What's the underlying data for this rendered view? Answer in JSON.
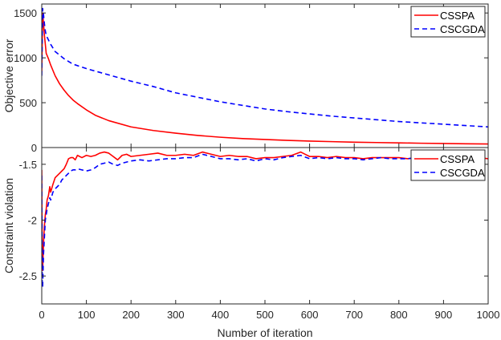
{
  "chart_data": [
    {
      "type": "line",
      "ylabel": "Objective error",
      "xlabel": "",
      "xlim": [
        0,
        1000
      ],
      "ylim": [
        0,
        1600
      ],
      "xticks": [
        0,
        100,
        200,
        300,
        400,
        500,
        600,
        700,
        800,
        900,
        1000
      ],
      "yticks": [
        0,
        500,
        1000,
        1500
      ],
      "ytick_labels": [
        "0",
        "500",
        "1000",
        "1500"
      ],
      "legend": {
        "placement": "top-right",
        "entries": [
          "CSSPA",
          "CSCGDA"
        ]
      },
      "series": [
        {
          "name": "CSSPA",
          "color": "#ff0000",
          "dash": "solid",
          "x": [
            0,
            2,
            4,
            6,
            8,
            10,
            15,
            20,
            30,
            40,
            50,
            60,
            70,
            80,
            100,
            120,
            150,
            200,
            250,
            300,
            350,
            400,
            450,
            500,
            550,
            600,
            650,
            700,
            750,
            800,
            850,
            900,
            950,
            1000
          ],
          "y": [
            850,
            1500,
            1380,
            1250,
            1150,
            1050,
            990,
            920,
            800,
            710,
            640,
            580,
            530,
            490,
            420,
            360,
            300,
            230,
            190,
            160,
            135,
            115,
            100,
            90,
            80,
            72,
            66,
            60,
            56,
            52,
            48,
            45,
            42,
            40
          ]
        },
        {
          "name": "CSCGDA",
          "color": "#0000ff",
          "dash": "dashed",
          "x": [
            0,
            2,
            4,
            6,
            8,
            10,
            15,
            20,
            30,
            50,
            70,
            100,
            150,
            200,
            250,
            300,
            350,
            400,
            450,
            500,
            550,
            600,
            650,
            700,
            750,
            800,
            850,
            900,
            950,
            1000
          ],
          "y": [
            800,
            1550,
            1480,
            1380,
            1300,
            1250,
            1200,
            1150,
            1070,
            990,
            930,
            880,
            810,
            740,
            680,
            610,
            560,
            510,
            470,
            430,
            400,
            375,
            350,
            330,
            310,
            290,
            275,
            260,
            245,
            230
          ]
        }
      ]
    },
    {
      "type": "line",
      "ylabel": "Constraint violation",
      "xlabel": "Number of iteration",
      "xlim": [
        0,
        1000
      ],
      "ylim": [
        -2.75,
        -1.35
      ],
      "xticks": [
        0,
        100,
        200,
        300,
        400,
        500,
        600,
        700,
        800,
        900,
        1000
      ],
      "xtick_labels": [
        "0",
        "100",
        "200",
        "300",
        "400",
        "500",
        "600",
        "700",
        "800",
        "900",
        "1000"
      ],
      "yticks": [
        -2.5,
        -2,
        -1.5
      ],
      "ytick_labels": [
        "-2.5",
        "-2",
        "-1.5"
      ],
      "legend": {
        "placement": "top-right",
        "entries": [
          "CSSPA",
          "CSCGDA"
        ]
      },
      "series": [
        {
          "name": "CSSPA",
          "color": "#ff0000",
          "dash": "solid",
          "x": [
            0,
            1,
            2,
            4,
            6,
            8,
            10,
            12,
            15,
            18,
            20,
            25,
            30,
            35,
            40,
            45,
            50,
            55,
            60,
            65,
            70,
            75,
            80,
            90,
            100,
            110,
            120,
            130,
            140,
            150,
            160,
            170,
            180,
            190,
            200,
            220,
            240,
            260,
            280,
            300,
            320,
            340,
            360,
            380,
            400,
            420,
            440,
            460,
            480,
            500,
            520,
            540,
            560,
            580,
            600,
            620,
            640,
            660,
            680,
            700,
            720,
            740,
            760,
            780,
            800,
            820,
            840,
            860,
            880,
            900,
            920,
            940,
            960,
            980,
            1000
          ],
          "y": [
            -1.55,
            -2.35,
            -2.45,
            -2.2,
            -2.05,
            -1.95,
            -1.9,
            -1.82,
            -1.78,
            -1.7,
            -1.75,
            -1.68,
            -1.62,
            -1.6,
            -1.58,
            -1.56,
            -1.54,
            -1.5,
            -1.45,
            -1.44,
            -1.44,
            -1.46,
            -1.42,
            -1.44,
            -1.42,
            -1.43,
            -1.42,
            -1.4,
            -1.39,
            -1.4,
            -1.43,
            -1.46,
            -1.42,
            -1.41,
            -1.43,
            -1.42,
            -1.41,
            -1.4,
            -1.42,
            -1.42,
            -1.41,
            -1.42,
            -1.39,
            -1.41,
            -1.43,
            -1.42,
            -1.43,
            -1.43,
            -1.45,
            -1.44,
            -1.44,
            -1.43,
            -1.42,
            -1.39,
            -1.43,
            -1.43,
            -1.44,
            -1.43,
            -1.44,
            -1.44,
            -1.45,
            -1.44,
            -1.44,
            -1.44,
            -1.44,
            -1.45,
            -1.44,
            -1.44,
            -1.45,
            -1.44,
            -1.45,
            -1.44,
            -1.45,
            -1.44,
            -1.45
          ]
        },
        {
          "name": "CSCGDA",
          "color": "#0000ff",
          "dash": "dashed",
          "x": [
            0,
            1,
            2,
            4,
            6,
            8,
            10,
            12,
            15,
            18,
            20,
            25,
            30,
            35,
            40,
            45,
            50,
            55,
            60,
            65,
            70,
            75,
            80,
            90,
            100,
            110,
            120,
            130,
            140,
            150,
            160,
            170,
            180,
            190,
            200,
            220,
            240,
            260,
            280,
            300,
            320,
            340,
            360,
            380,
            400,
            420,
            440,
            460,
            480,
            500,
            520,
            540,
            560,
            580,
            600,
            620,
            640,
            660,
            680,
            700,
            720,
            740,
            760,
            780,
            800,
            820,
            840,
            860,
            880,
            900,
            920,
            940,
            960,
            980,
            1000
          ],
          "y": [
            -1.6,
            -2.55,
            -2.6,
            -2.3,
            -2.15,
            -2.0,
            -1.95,
            -1.9,
            -1.85,
            -1.8,
            -1.82,
            -1.75,
            -1.72,
            -1.7,
            -1.68,
            -1.64,
            -1.62,
            -1.6,
            -1.58,
            -1.56,
            -1.55,
            -1.55,
            -1.54,
            -1.55,
            -1.56,
            -1.55,
            -1.53,
            -1.5,
            -1.49,
            -1.48,
            -1.5,
            -1.51,
            -1.49,
            -1.48,
            -1.47,
            -1.46,
            -1.47,
            -1.46,
            -1.45,
            -1.45,
            -1.44,
            -1.44,
            -1.41,
            -1.43,
            -1.45,
            -1.45,
            -1.46,
            -1.45,
            -1.47,
            -1.45,
            -1.46,
            -1.44,
            -1.43,
            -1.42,
            -1.45,
            -1.44,
            -1.45,
            -1.44,
            -1.45,
            -1.45,
            -1.46,
            -1.45,
            -1.44,
            -1.45,
            -1.45,
            -1.45,
            -1.44,
            -1.45,
            -1.45,
            -1.45,
            -1.44,
            -1.45,
            -1.45,
            -1.44,
            -1.45
          ]
        }
      ]
    }
  ]
}
